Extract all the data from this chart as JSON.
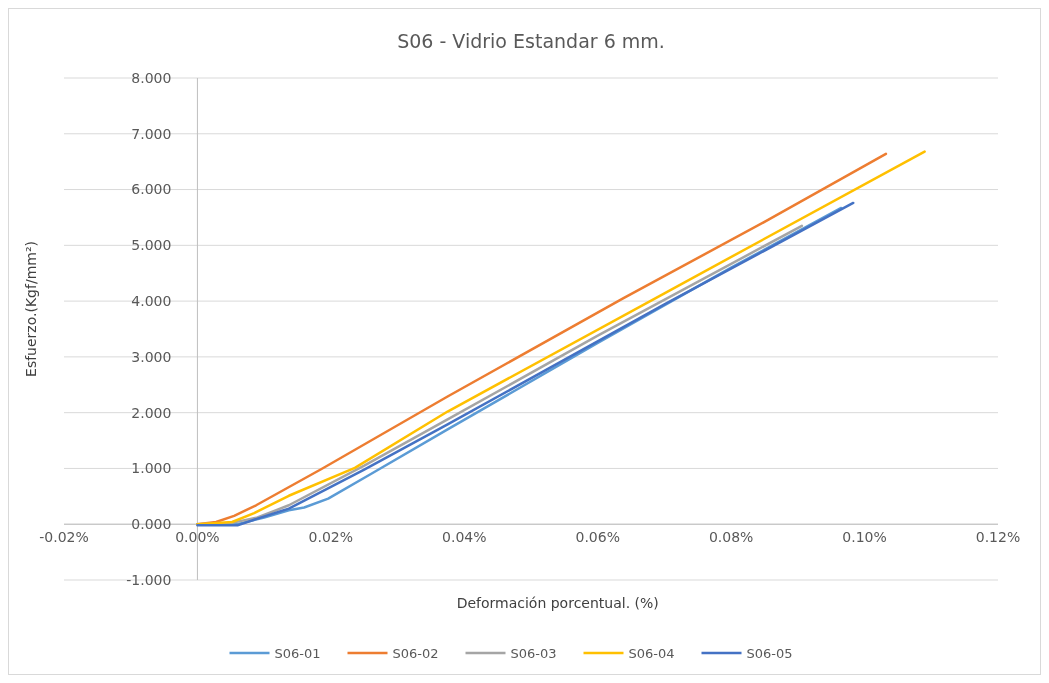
{
  "chart_data": {
    "type": "line",
    "title": "S06 - Vidrio Estandar 6 mm.",
    "xlabel": "Deformación porcentual. (%)",
    "ylabel": "Esfuerzo.(Kgf/mm²)",
    "xlim": [
      -0.02,
      0.12
    ],
    "xticks": [
      {
        "value": -0.02,
        "label": "-0.02%"
      },
      {
        "value": 0,
        "label": "0.00%"
      },
      {
        "value": 0.02,
        "label": "0.02%"
      },
      {
        "value": 0.04,
        "label": "0.04%"
      },
      {
        "value": 0.06,
        "label": "0.06%"
      },
      {
        "value": 0.08,
        "label": "0.08%"
      },
      {
        "value": 0.1,
        "label": "0.10%"
      },
      {
        "value": 0.12,
        "label": "0.12%"
      }
    ],
    "ylim": [
      -1,
      8
    ],
    "yticks": [
      {
        "value": -1,
        "label": "-1.000"
      },
      {
        "value": 0,
        "label": "0.000"
      },
      {
        "value": 1,
        "label": "1.000"
      },
      {
        "value": 2,
        "label": "2.000"
      },
      {
        "value": 3,
        "label": "3.000"
      },
      {
        "value": 4,
        "label": "4.000"
      },
      {
        "value": 5,
        "label": "5.000"
      },
      {
        "value": 6,
        "label": "6.000"
      },
      {
        "value": 7,
        "label": "7.000"
      },
      {
        "value": 8,
        "label": "8.000"
      }
    ],
    "grid": "y",
    "legend": "bottom",
    "marker": "none",
    "line_style": "solid",
    "series": [
      {
        "name": "S06-01",
        "color": "#5b9bd5",
        "x": [
          0,
          0.006,
          0.01,
          0.0137,
          0.016,
          0.0196,
          0.026,
          0.0375,
          0.06,
          0.08,
          0.0965
        ],
        "values": [
          0,
          0,
          0.12,
          0.25,
          0.3,
          0.46,
          0.9,
          1.7,
          3.25,
          4.6,
          5.67
        ]
      },
      {
        "name": "S06-02",
        "color": "#ed7d31",
        "x": [
          0,
          0.0028,
          0.0055,
          0.0088,
          0.0186,
          0.0375,
          0.0638,
          0.085,
          0.1032
        ],
        "values": [
          0,
          0.04,
          0.15,
          0.34,
          0.99,
          2.29,
          4.05,
          5.42,
          6.64
        ]
      },
      {
        "name": "S06-03",
        "color": "#a5a5a5",
        "x": [
          0,
          0.005,
          0.009,
          0.0137,
          0.025,
          0.0375,
          0.06,
          0.0906
        ],
        "values": [
          0,
          0.02,
          0.12,
          0.34,
          1.05,
          1.88,
          3.38,
          5.35
        ]
      },
      {
        "name": "S06-04",
        "color": "#ffc000",
        "x": [
          0,
          0.0052,
          0.0085,
          0.0137,
          0.0236,
          0.0375,
          0.07,
          0.109
        ],
        "values": [
          0,
          0.04,
          0.2,
          0.51,
          1.01,
          2.02,
          4.14,
          6.68
        ]
      },
      {
        "name": "S06-05",
        "color": "#4472c4",
        "x": [
          0,
          0.006,
          0.009,
          0.0137,
          0.025,
          0.0375,
          0.07,
          0.0983
        ],
        "values": [
          -0.02,
          -0.02,
          0.1,
          0.28,
          0.98,
          1.79,
          3.94,
          5.76
        ]
      }
    ]
  }
}
